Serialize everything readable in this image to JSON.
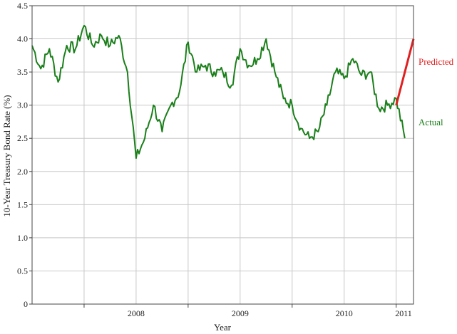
{
  "chart_data": {
    "type": "line",
    "title": "",
    "xlabel": "Year",
    "ylabel": "10-Year Treasury Bond Rate (%)",
    "ylim": [
      0,
      4.5
    ],
    "xlim": [
      "2007-07",
      "2011-03"
    ],
    "grid": true,
    "y_ticks": [
      "0",
      "0.5",
      "1.0",
      "1.5",
      "2.0",
      "2.5",
      "3.0",
      "3.5",
      "4.0",
      "4.5"
    ],
    "x_ticks": [
      "2008",
      "2009",
      "2010",
      "2011"
    ],
    "series": [
      {
        "name": "Actual",
        "color": "#1a7f1a",
        "x": [
          "2007-07",
          "2007-08",
          "2007-09",
          "2007-10",
          "2007-11",
          "2007-12",
          "2008-01",
          "2008-02",
          "2008-03",
          "2008-04",
          "2008-05",
          "2008-06",
          "2008-07",
          "2008-08",
          "2008-09",
          "2008-10",
          "2008-11",
          "2008-12",
          "2009-01",
          "2009-02",
          "2009-03",
          "2009-04",
          "2009-05",
          "2009-06",
          "2009-07",
          "2009-08",
          "2009-09",
          "2009-10",
          "2009-11",
          "2009-12",
          "2010-01",
          "2010-02",
          "2010-03",
          "2010-04",
          "2010-05",
          "2010-06",
          "2010-07",
          "2010-08",
          "2010-09",
          "2010-10",
          "2010-11",
          "2010-12",
          "2011-01",
          "2011-02"
        ],
        "values": [
          3.9,
          3.55,
          3.85,
          3.35,
          3.9,
          3.85,
          4.2,
          3.9,
          4.05,
          3.9,
          4.05,
          3.5,
          2.2,
          2.5,
          3.0,
          2.6,
          3.0,
          3.2,
          3.95,
          3.5,
          3.6,
          3.5,
          3.5,
          3.3,
          3.85,
          3.6,
          3.7,
          4.0,
          3.5,
          3.1,
          3.0,
          2.65,
          2.5,
          2.6,
          3.0,
          3.5,
          3.4,
          3.7,
          3.45,
          3.5,
          2.95,
          3.0,
          3.1,
          2.5
        ]
      },
      {
        "name": "Predicted",
        "color": "#e02020",
        "x": [
          "2011-01",
          "2011-03"
        ],
        "values": [
          3.0,
          4.0
        ]
      }
    ]
  }
}
